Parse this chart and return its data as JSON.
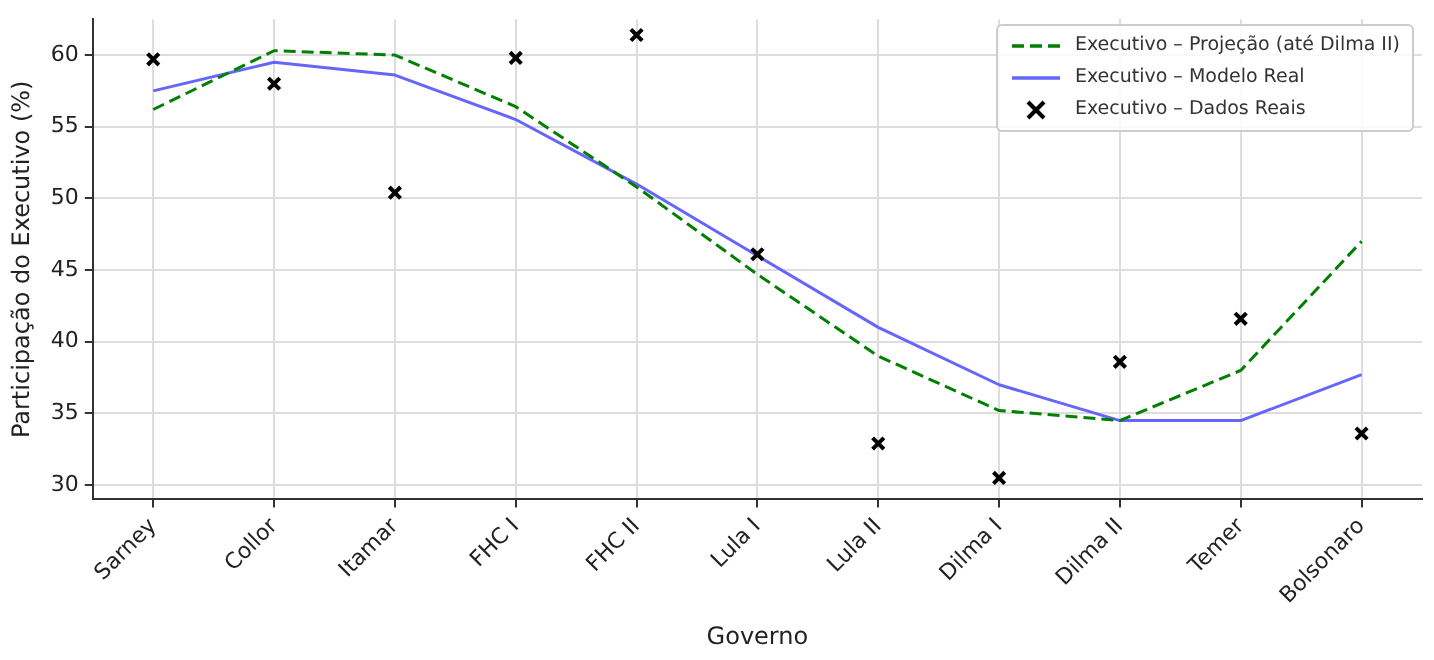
{
  "chart_data": {
    "type": "line",
    "xlabel": "Governo",
    "ylabel": "Participação do Executivo (%)",
    "categories": [
      "Sarney",
      "Collor",
      "Itamar",
      "FHC I",
      "FHC II",
      "Lula I",
      "Lula II",
      "Dilma I",
      "Dilma II",
      "Temer",
      "Bolsonaro"
    ],
    "ylim": [
      29,
      62.5
    ],
    "yticks": [
      30,
      35,
      40,
      45,
      50,
      55,
      60
    ],
    "grid": true,
    "legend": "top right",
    "series": [
      {
        "name": "Executivo – Projeção (até Dilma II)",
        "type": "line",
        "color": "#008000",
        "line_style": "dashed",
        "marker": "none",
        "values": [
          56.2,
          60.3,
          60.0,
          56.4,
          50.8,
          44.7,
          39.0,
          35.2,
          34.5,
          38.0,
          47.0
        ]
      },
      {
        "name": "Executivo – Modelo Real",
        "type": "line",
        "color": "#6666ff",
        "line_style": "solid",
        "marker": "none",
        "values": [
          57.5,
          59.5,
          58.6,
          55.5,
          51.0,
          46.0,
          41.0,
          37.0,
          34.5,
          34.5,
          37.7
        ]
      },
      {
        "name": "Executivo – Dados Reais",
        "type": "scatter",
        "color": "#000000",
        "marker": "cross",
        "values": [
          59.7,
          58.0,
          50.4,
          59.8,
          61.4,
          46.1,
          32.9,
          30.5,
          38.6,
          41.6,
          33.6
        ]
      }
    ]
  }
}
